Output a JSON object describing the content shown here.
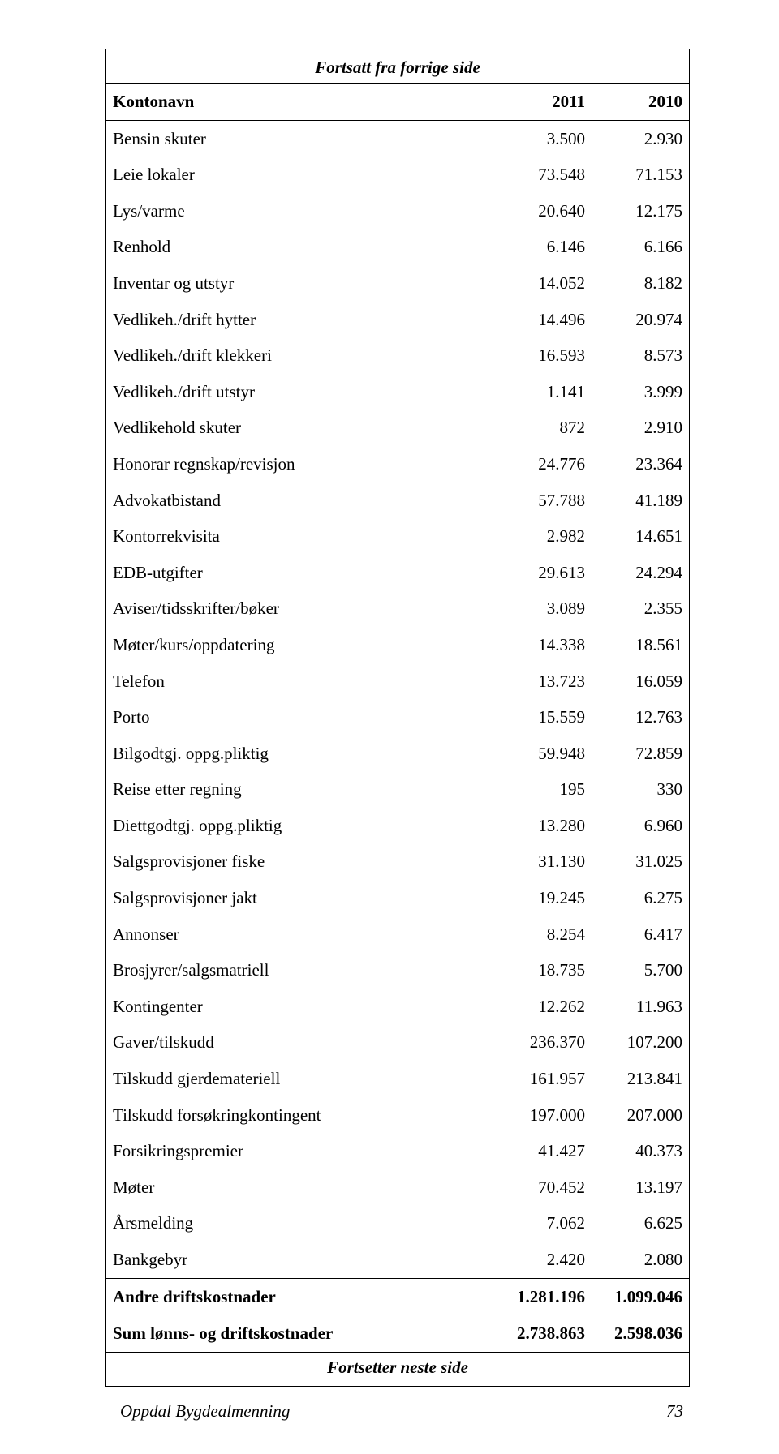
{
  "continued_from_label": "Fortsatt fra forrige side",
  "continued_to_label": "Fortsetter neste side",
  "header": {
    "col_name": "Kontonavn",
    "col_year1": "2011",
    "col_year2": "2010"
  },
  "rows": [
    {
      "name": "Bensin skuter",
      "y1": "3.500",
      "y2": "2.930"
    },
    {
      "name": "Leie lokaler",
      "y1": "73.548",
      "y2": "71.153"
    },
    {
      "name": "Lys/varme",
      "y1": "20.640",
      "y2": "12.175"
    },
    {
      "name": "Renhold",
      "y1": "6.146",
      "y2": "6.166"
    },
    {
      "name": "Inventar og utstyr",
      "y1": "14.052",
      "y2": "8.182"
    },
    {
      "name": "Vedlikeh./drift hytter",
      "y1": "14.496",
      "y2": "20.974"
    },
    {
      "name": "Vedlikeh./drift klekkeri",
      "y1": "16.593",
      "y2": "8.573"
    },
    {
      "name": "Vedlikeh./drift utstyr",
      "y1": "1.141",
      "y2": "3.999"
    },
    {
      "name": "Vedlikehold skuter",
      "y1": "872",
      "y2": "2.910"
    },
    {
      "name": "Honorar regnskap/revisjon",
      "y1": "24.776",
      "y2": "23.364"
    },
    {
      "name": "Advokatbistand",
      "y1": "57.788",
      "y2": "41.189"
    },
    {
      "name": "Kontorrekvisita",
      "y1": "2.982",
      "y2": "14.651"
    },
    {
      "name": "EDB-utgifter",
      "y1": "29.613",
      "y2": "24.294"
    },
    {
      "name": "Aviser/tidsskrifter/bøker",
      "y1": "3.089",
      "y2": "2.355"
    },
    {
      "name": "Møter/kurs/oppdatering",
      "y1": "14.338",
      "y2": "18.561"
    },
    {
      "name": "Telefon",
      "y1": "13.723",
      "y2": "16.059"
    },
    {
      "name": "Porto",
      "y1": "15.559",
      "y2": "12.763"
    },
    {
      "name": "Bilgodtgj. oppg.pliktig",
      "y1": "59.948",
      "y2": "72.859"
    },
    {
      "name": "Reise etter regning",
      "y1": "195",
      "y2": "330"
    },
    {
      "name": "Diettgodtgj. oppg.pliktig",
      "y1": "13.280",
      "y2": "6.960"
    },
    {
      "name": "Salgsprovisjoner fiske",
      "y1": "31.130",
      "y2": "31.025"
    },
    {
      "name": "Salgsprovisjoner jakt",
      "y1": "19.245",
      "y2": "6.275"
    },
    {
      "name": "Annonser",
      "y1": "8.254",
      "y2": "6.417"
    },
    {
      "name": "Brosjyrer/salgsmatriell",
      "y1": "18.735",
      "y2": "5.700"
    },
    {
      "name": "Kontingenter",
      "y1": "12.262",
      "y2": "11.963"
    },
    {
      "name": "Gaver/tilskudd",
      "y1": "236.370",
      "y2": "107.200"
    },
    {
      "name": "Tilskudd gjerdemateriell",
      "y1": "161.957",
      "y2": "213.841"
    },
    {
      "name": "Tilskudd forsøkringkontingent",
      "y1": "197.000",
      "y2": "207.000"
    },
    {
      "name": "Forsikringspremier",
      "y1": "41.427",
      "y2": "40.373"
    },
    {
      "name": "Møter",
      "y1": "70.452",
      "y2": "13.197"
    },
    {
      "name": "Årsmelding",
      "y1": "7.062",
      "y2": "6.625"
    },
    {
      "name": "Bankgebyr",
      "y1": "2.420",
      "y2": "2.080"
    }
  ],
  "subtotal": {
    "name": "Andre driftskostnader",
    "y1": "1.281.196",
    "y2": "1.099.046"
  },
  "total": {
    "name": "Sum lønns- og driftskostnader",
    "y1": "2.738.863",
    "y2": "2.598.036"
  },
  "footer": {
    "doc_title": "Oppdal Bygdealmenning",
    "page_number": "73"
  }
}
